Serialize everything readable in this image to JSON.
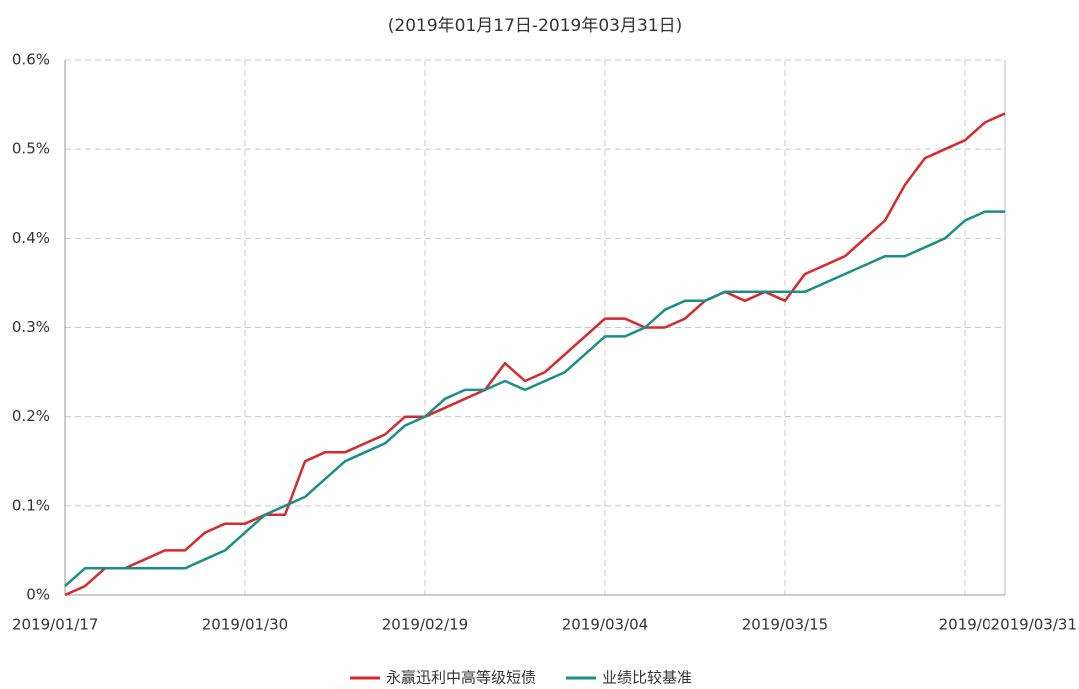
{
  "chart_data": {
    "type": "line",
    "title": "(2019年01月17日-2019年03月31日)",
    "categories": [
      "2019/01/17",
      null,
      null,
      null,
      null,
      null,
      null,
      null,
      null,
      "2019/01/30",
      null,
      null,
      null,
      null,
      null,
      null,
      null,
      null,
      "2019/02/19",
      null,
      null,
      null,
      null,
      null,
      null,
      null,
      null,
      "2019/03/04",
      null,
      null,
      null,
      null,
      null,
      null,
      null,
      null,
      "2019/03/15",
      null,
      null,
      null,
      null,
      null,
      null,
      null,
      null,
      "2019/0",
      null,
      "2019/03/31"
    ],
    "series": [
      {
        "name": "永赢迅利中高等级短债",
        "color": "#d7282c",
        "values": [
          0,
          0.01,
          0.03,
          0.03,
          0.04,
          0.05,
          0.05,
          0.07,
          0.08,
          0.08,
          0.09,
          0.09,
          0.15,
          0.16,
          0.16,
          0.17,
          0.18,
          0.2,
          0.2,
          0.21,
          0.22,
          0.23,
          0.26,
          0.24,
          0.25,
          0.27,
          0.29,
          0.31,
          0.31,
          0.3,
          0.3,
          0.31,
          0.33,
          0.34,
          0.33,
          0.34,
          0.33,
          0.36,
          0.37,
          0.38,
          0.4,
          0.42,
          0.46,
          0.49,
          0.5,
          0.51,
          0.53,
          0.54
        ]
      },
      {
        "name": "业绩比较基准",
        "color": "#1b8e88",
        "values": [
          0.01,
          0.03,
          0.03,
          0.03,
          0.03,
          0.03,
          0.03,
          0.04,
          0.05,
          0.07,
          0.09,
          0.1,
          0.11,
          0.13,
          0.15,
          0.16,
          0.17,
          0.19,
          0.2,
          0.22,
          0.23,
          0.23,
          0.24,
          0.23,
          0.24,
          0.25,
          0.27,
          0.29,
          0.29,
          0.3,
          0.32,
          0.33,
          0.33,
          0.34,
          0.34,
          0.34,
          0.34,
          0.34,
          0.35,
          0.36,
          0.37,
          0.38,
          0.38,
          0.39,
          0.4,
          0.42,
          0.43,
          0.43
        ]
      }
    ],
    "ylim": [
      0,
      0.6
    ],
    "yticks": [
      {
        "value": 0,
        "label": "0%"
      },
      {
        "value": 0.1,
        "label": "0.1%"
      },
      {
        "value": 0.2,
        "label": "0.2%"
      },
      {
        "value": 0.3,
        "label": "0.3%"
      },
      {
        "value": 0.4,
        "label": "0.4%"
      },
      {
        "value": 0.5,
        "label": "0.5%"
      },
      {
        "value": 0.6,
        "label": "0.6%"
      }
    ],
    "grid": true,
    "legend": "bottom"
  }
}
